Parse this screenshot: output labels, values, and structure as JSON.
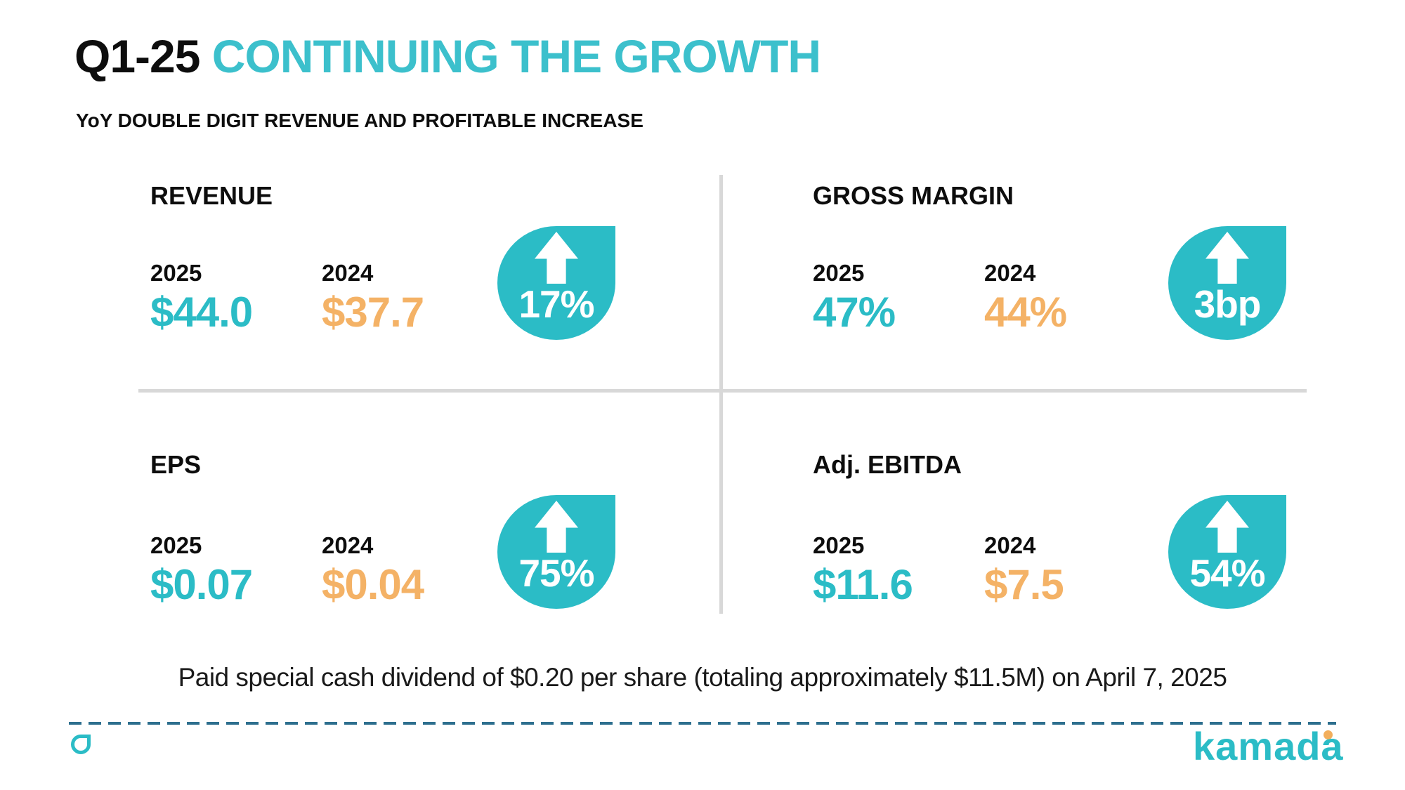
{
  "title": {
    "prefix": "Q1-25",
    "highlight": "CONTINUING THE GROWTH"
  },
  "subtitle": "YoY DOUBLE DIGIT REVENUE AND PROFITABLE INCREASE",
  "metrics": [
    {
      "label": "REVENUE",
      "year1": "2025",
      "value1": "$44.0",
      "year2": "2024",
      "value2": "$37.7",
      "change": "17%",
      "change_direction": "up"
    },
    {
      "label": "GROSS MARGIN",
      "year1": "2025",
      "value1": "47%",
      "year2": "2024",
      "value2": "44%",
      "change": "3bp",
      "change_direction": "up"
    },
    {
      "label": "EPS",
      "year1": "2025",
      "value1": "$0.07",
      "year2": "2024",
      "value2": "$0.04",
      "change": "75%",
      "change_direction": "up"
    },
    {
      "label": "Adj. EBITDA",
      "year1": "2025",
      "value1": "$11.6",
      "year2": "2024",
      "value2": "$7.5",
      "change": "54%",
      "change_direction": "up"
    }
  ],
  "footnote": "Paid special cash dividend of $0.20 per share (totaling approximately $11.5M) on April 7, 2025",
  "footer": {
    "brand": "kamada"
  },
  "icons": {
    "change_badge": "up-arrow-droplet",
    "brand_glyph": "droplet-outline"
  },
  "colors": {
    "teal": "#2bbcc6",
    "title_teal": "#3cc0cc",
    "orange": "#f4b266",
    "divider_gray": "#d8d8d8",
    "dashed_line": "#2d6f8e",
    "brand_dot_orange": "#f2ae5c",
    "text_black": "#0d0d0d"
  }
}
